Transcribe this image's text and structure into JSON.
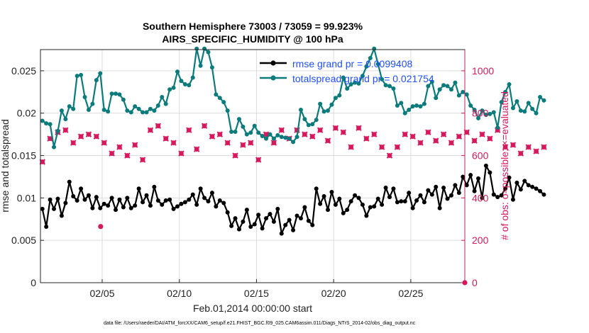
{
  "chart_data": {
    "type": "line",
    "title_line1": "Southern Hemisphere 73003 / 73059 = 99.923%",
    "title_line2": "AIRS_SPECIFIC_HUMIDITY @ 100 hPa",
    "xlabel": "Feb.01,2014 00:00:00 start",
    "ylabel_left": "rmse and totalspread",
    "ylabel_right": "# of obs: o=possible; ×=evaluated",
    "footer": "data file: /Users/raeder/DAI/ATM_forcXX/CAM6_setup/f.e21.FHIST_BGC.f09_025.CAM6assim.011/Diags_NTrS_2014-02/obs_diag_output.nc",
    "xlim": [
      1,
      28.5
    ],
    "ylim_left": [
      0,
      0.0275
    ],
    "ylim_right": [
      0,
      1100
    ],
    "x_ticks": [
      5,
      10,
      15,
      20,
      25
    ],
    "x_tick_labels": [
      "02/05",
      "02/10",
      "02/15",
      "02/20",
      "02/25"
    ],
    "y_left_ticks": [
      0,
      0.005,
      0.01,
      0.015,
      0.02,
      0.025
    ],
    "y_left_tick_labels": [
      "0",
      "0.005",
      "0.01",
      "0.015",
      "0.02",
      "0.025"
    ],
    "y_right_ticks": [
      0,
      200,
      400,
      600,
      800,
      1000
    ],
    "y_right_tick_labels": [
      "0",
      "200",
      "400",
      "600",
      "800",
      "1000"
    ],
    "grid": true,
    "legend_position": "top-right",
    "x_start": 1.125,
    "x_step": 0.25,
    "series": [
      {
        "name": "rmse grand pr = 0.0099408",
        "axis": "left",
        "color": "#000000",
        "marker": "circle",
        "values": [
          0.0087,
          0.0066,
          0.0098,
          0.0087,
          0.0099,
          0.0079,
          0.0094,
          0.0119,
          0.0102,
          0.0097,
          0.0111,
          0.0098,
          0.0103,
          0.0088,
          0.0101,
          0.0088,
          0.0093,
          0.0091,
          0.01,
          0.0086,
          0.0098,
          0.0089,
          0.01,
          0.0088,
          0.0091,
          0.0111,
          0.0095,
          0.0103,
          0.0091,
          0.0113,
          0.0097,
          0.0092,
          0.0097,
          0.0098,
          0.0087,
          0.009,
          0.0093,
          0.0095,
          0.0098,
          0.0104,
          0.0092,
          0.0111,
          0.01,
          0.0096,
          0.0106,
          0.009,
          0.0097,
          0.0094,
          0.0083,
          0.0067,
          0.0076,
          0.0063,
          0.0072,
          0.0086,
          0.0066,
          0.0069,
          0.008,
          0.0064,
          0.0076,
          0.0081,
          0.0072,
          0.0087,
          0.0058,
          0.0068,
          0.0074,
          0.0062,
          0.0079,
          0.0076,
          0.0089,
          0.0073,
          0.0068,
          0.0111,
          0.0093,
          0.0102,
          0.0086,
          0.0107,
          0.0092,
          0.0099,
          0.0082,
          0.0086,
          0.0096,
          0.0103,
          0.01,
          0.0092,
          0.0079,
          0.0089,
          0.009,
          0.0099,
          0.0092,
          0.0112,
          0.0101,
          0.0111,
          0.0095,
          0.0096,
          0.0096,
          0.0106,
          0.0088,
          0.0097,
          0.0103,
          0.0095,
          0.0109,
          0.0104,
          0.0113,
          0.0088,
          0.0112,
          0.0099,
          0.0103,
          0.0115,
          0.0106,
          0.0125,
          0.0115,
          0.0127,
          0.0108,
          0.0123,
          0.01,
          0.0138,
          0.013,
          0.0104,
          0.0101,
          0.0103,
          0.0111,
          0.0124,
          0.0098,
          0.0118,
          0.011,
          0.012,
          0.0115,
          0.0113,
          0.0111,
          0.0108,
          0.0104
        ]
      },
      {
        "name": "totalspread grand pr = 0.021754",
        "axis": "left",
        "color": "#0b7b7b",
        "marker": "circle",
        "values": [
          0.0191,
          0.0188,
          0.0187,
          0.016,
          0.0179,
          0.0203,
          0.0193,
          0.0208,
          0.0205,
          0.0244,
          0.0245,
          0.0219,
          0.0204,
          0.0211,
          0.0239,
          0.0247,
          0.0204,
          0.0202,
          0.0223,
          0.0223,
          0.0222,
          0.0216,
          0.0203,
          0.0201,
          0.0208,
          0.0205,
          0.0201,
          0.0201,
          0.0205,
          0.0203,
          0.0209,
          0.0219,
          0.0211,
          0.0228,
          0.023,
          0.0249,
          0.0238,
          0.0234,
          0.0233,
          0.0242,
          0.0276,
          0.0256,
          0.0276,
          0.0272,
          0.0254,
          0.0222,
          0.0218,
          0.0213,
          0.0203,
          0.0178,
          0.0178,
          0.0193,
          0.0184,
          0.0175,
          0.0177,
          0.0185,
          0.0177,
          0.0173,
          0.017,
          0.0175,
          0.017,
          0.0174,
          0.0172,
          0.0171,
          0.017,
          0.0166,
          0.0172,
          0.0204,
          0.0193,
          0.0186,
          0.0187,
          0.0192,
          0.0211,
          0.0202,
          0.0203,
          0.021,
          0.0218,
          0.0221,
          0.0242,
          0.0229,
          0.0234,
          0.0236,
          0.0235,
          0.0244,
          0.0255,
          0.0265,
          0.0276,
          0.0258,
          0.024,
          0.0233,
          0.0232,
          0.0229,
          0.0209,
          0.0212,
          0.02,
          0.0204,
          0.0208,
          0.0209,
          0.0208,
          0.0211,
          0.0232,
          0.0237,
          0.0218,
          0.0228,
          0.0233,
          0.0232,
          0.0228,
          0.0236,
          0.0221,
          0.0225,
          0.0222,
          0.0209,
          0.0204,
          0.0194,
          0.0203,
          0.0198,
          0.0199,
          0.0201,
          0.0183,
          0.0213,
          0.0225,
          0.0234,
          0.0206,
          0.0214,
          0.0203,
          0.0202,
          0.0212,
          0.0205,
          0.02,
          0.0219,
          0.0215
        ]
      },
      {
        "name": "obs possible",
        "axis": "right",
        "color": "#d6185c",
        "marker": "circle",
        "values": [
          570,
          718,
          680,
          590,
          710,
          630,
          720,
          640,
          660,
          600,
          690,
          660,
          700,
          640,
          690,
          620,
          660,
          700,
          610,
          660,
          640,
          700,
          600,
          680,
          650,
          720,
          580,
          680,
          720,
          620,
          740,
          640,
          680,
          580,
          660,
          720,
          610,
          670,
          720,
          580,
          630,
          680,
          740,
          600,
          690,
          640,
          700,
          610,
          660,
          730,
          600,
          680,
          650,
          620,
          660,
          690,
          580,
          640,
          700,
          540,
          660,
          620,
          720,
          640,
          680,
          600,
          720,
          620,
          700,
          600,
          690,
          640,
          720,
          600,
          670,
          640,
          730,
          650,
          710,
          600,
          640,
          670,
          730,
          600,
          680,
          650,
          700,
          610,
          640,
          720,
          600,
          680,
          640,
          630,
          700,
          620,
          690,
          590,
          660,
          640,
          710,
          600,
          670,
          620,
          700,
          580,
          660,
          640,
          690,
          620,
          710,
          600,
          670,
          640,
          700,
          600,
          680,
          650,
          720,
          600,
          640,
          680,
          650,
          700,
          610,
          670,
          640,
          660,
          620,
          690,
          640
        ]
      },
      {
        "name": "obs evaluated",
        "axis": "right",
        "color": "#d6185c",
        "marker": "cross",
        "values": [
          570,
          718,
          680,
          590,
          710,
          630,
          720,
          640,
          660,
          600,
          690,
          660,
          700,
          640,
          690,
          620,
          660,
          700,
          610,
          660,
          640,
          700,
          600,
          680,
          650,
          720,
          580,
          680,
          720,
          620,
          740,
          640,
          680,
          580,
          660,
          720,
          610,
          670,
          720,
          580,
          630,
          680,
          740,
          600,
          690,
          640,
          700,
          610,
          660,
          730,
          600,
          680,
          650,
          620,
          660,
          690,
          580,
          640,
          700,
          540,
          660,
          620,
          720,
          640,
          680,
          600,
          720,
          620,
          700,
          600,
          690,
          640,
          720,
          600,
          670,
          640,
          730,
          650,
          710,
          600,
          640,
          670,
          730,
          600,
          680,
          650,
          700,
          610,
          640,
          720,
          600,
          680,
          640,
          630,
          700,
          620,
          690,
          590,
          660,
          640,
          710,
          600,
          670,
          620,
          700,
          580,
          660,
          640,
          690,
          620,
          710,
          600,
          670,
          640,
          700,
          600,
          680,
          650,
          720,
          600,
          640,
          680,
          650,
          700,
          610,
          670,
          640,
          660,
          620,
          690,
          640
        ]
      }
    ],
    "extra_points": [
      {
        "axis": "right",
        "x": 4.9,
        "y": 265,
        "series_index": 2
      },
      {
        "axis": "right",
        "x": 28.5,
        "y": 0,
        "series_index": 2
      }
    ]
  }
}
